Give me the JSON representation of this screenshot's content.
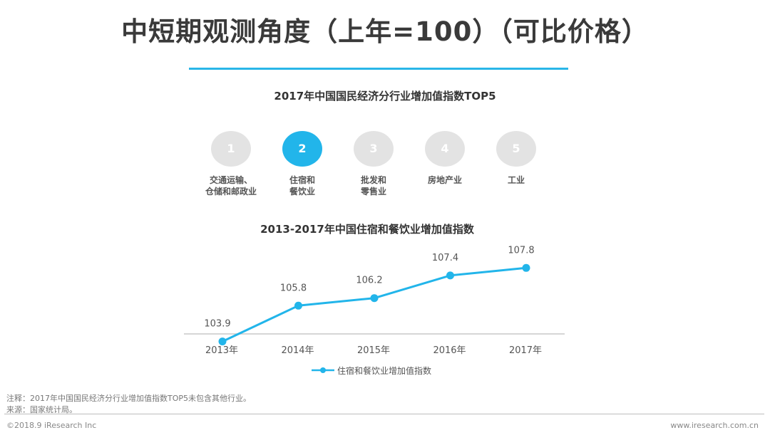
{
  "page": {
    "title": "中短期观测角度（上年=100）（可比价格）"
  },
  "ranking": {
    "title": "2017年中国国民经济分行业增加值指数TOP5",
    "items": [
      {
        "rank": "1",
        "label": "交通运输、\n仓储和邮政业",
        "highlighted": false
      },
      {
        "rank": "2",
        "label": "住宿和\n餐饮业",
        "highlighted": true
      },
      {
        "rank": "3",
        "label": "批发和\n零售业",
        "highlighted": false
      },
      {
        "rank": "4",
        "label": "房地产业",
        "highlighted": false
      },
      {
        "rank": "5",
        "label": "工业",
        "highlighted": false
      }
    ],
    "highlight_color": "#22b5ea",
    "default_color": "#e3e3e3"
  },
  "chart_data": {
    "type": "line",
    "title": "2013-2017年中国住宿和餐饮业增加值指数",
    "categories": [
      "2013年",
      "2014年",
      "2015年",
      "2016年",
      "2017年"
    ],
    "series": [
      {
        "name": "住宿和餐饮业增加值指数",
        "values": [
          103.9,
          105.8,
          106.2,
          107.4,
          107.8
        ],
        "color": "#22b5ea"
      }
    ],
    "ylim": [
      100,
      110
    ],
    "grid": false,
    "legend": "bottom",
    "data_labels": true
  },
  "notes": {
    "note": "注释：2017年中国国民经济分行业增加值指数TOP5未包含其他行业。",
    "source": "来源：国家统计局。"
  },
  "footer": {
    "copyright": "©2018.9 iResearch Inc",
    "website": "www.iresearch.com.cn"
  }
}
